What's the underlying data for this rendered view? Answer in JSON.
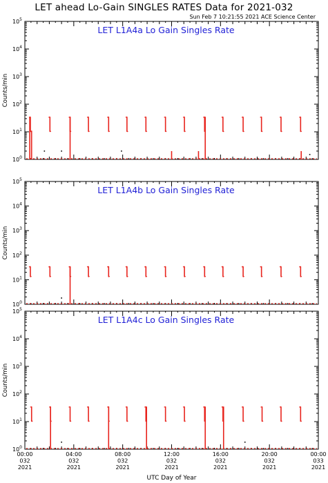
{
  "header": {
    "title": "LET ahead Lo-Gain SINGLES RATES Data for 2021-032",
    "timestamp": "Sun Feb  7 10:21:55 2021 ACE Science Center"
  },
  "colors": {
    "data": "#e8231c",
    "panel_title": "#1f1fd6",
    "axes": "#000000"
  },
  "chart_data": [
    {
      "type": "line",
      "title": "LET L1A4a Lo Gain Singles Rate",
      "ylabel": "Counts/min",
      "xlabel": "UTC Day of Year",
      "yscale": "log",
      "ylim": [
        1,
        100000
      ],
      "xlim": [
        0,
        24
      ],
      "yticks": [
        1,
        10,
        100,
        1000,
        10000,
        100000
      ],
      "ytick_labels": [
        {
          "b": "10",
          "e": "0"
        },
        {
          "b": "10",
          "e": "1"
        },
        {
          "b": "10",
          "e": "2"
        },
        {
          "b": "10",
          "e": "3"
        },
        {
          "b": "10",
          "e": "4"
        },
        {
          "b": "10",
          "e": "5"
        }
      ],
      "burst_hours": [
        0.45,
        2.05,
        3.7,
        5.2,
        6.85,
        8.35,
        9.9,
        11.5,
        13.05,
        14.7,
        16.2,
        17.85,
        19.35,
        20.95,
        22.55
      ],
      "burst_high": 35,
      "burst_low": 10,
      "baseline": 1,
      "spikes": [
        {
          "x": 0.4,
          "y": 35
        },
        {
          "x": 0.55,
          "y": 11
        },
        {
          "x": 3.7,
          "y": 35
        },
        {
          "x": 12.0,
          "y": 2
        },
        {
          "x": 14.2,
          "y": 2
        },
        {
          "x": 14.75,
          "y": 35
        },
        {
          "x": 22.6,
          "y": 2
        }
      ],
      "dots": [
        {
          "x": 1.6,
          "y": 2
        },
        {
          "x": 3.0,
          "y": 2
        },
        {
          "x": 7.9,
          "y": 2
        },
        {
          "x": 23.3,
          "y": 1.5
        }
      ]
    },
    {
      "type": "line",
      "title": "LET L1A4b Lo Gain Singles Rate",
      "ylabel": "Counts/min",
      "xlabel": "UTC Day of Year",
      "yscale": "log",
      "ylim": [
        1,
        100000
      ],
      "xlim": [
        0,
        24
      ],
      "yticks": [
        1,
        10,
        100,
        1000,
        10000,
        100000
      ],
      "ytick_labels": [
        {
          "b": "10",
          "e": "0"
        },
        {
          "b": "10",
          "e": "1"
        },
        {
          "b": "10",
          "e": "2"
        },
        {
          "b": "10",
          "e": "3"
        },
        {
          "b": "10",
          "e": "4"
        },
        {
          "b": "10",
          "e": "5"
        }
      ],
      "burst_hours": [
        0.45,
        2.05,
        3.7,
        5.2,
        6.85,
        8.35,
        9.9,
        11.5,
        13.05,
        14.7,
        16.2,
        17.85,
        19.35,
        20.95,
        22.55
      ],
      "burst_high": 35,
      "burst_low": 13,
      "baseline": 1,
      "spikes": [
        {
          "x": 3.7,
          "y": 35
        }
      ],
      "dots": [
        {
          "x": 3.0,
          "y": 1.8
        }
      ]
    },
    {
      "type": "line",
      "title": "LET L1A4c Lo Gain Singles Rate",
      "ylabel": "Counts/min",
      "xlabel": "UTC Day of Year",
      "yscale": "log",
      "ylim": [
        1,
        100000
      ],
      "xlim": [
        0,
        24
      ],
      "yticks": [
        1,
        10,
        100,
        1000,
        10000,
        100000
      ],
      "ytick_labels": [
        {
          "b": "10",
          "e": "0"
        },
        {
          "b": "10",
          "e": "1"
        },
        {
          "b": "10",
          "e": "2"
        },
        {
          "b": "10",
          "e": "3"
        },
        {
          "b": "10",
          "e": "4"
        },
        {
          "b": "10",
          "e": "5"
        }
      ],
      "burst_hours": [
        0.55,
        2.1,
        3.7,
        5.2,
        6.85,
        8.35,
        9.9,
        11.5,
        13.05,
        14.7,
        16.2,
        17.85,
        19.4,
        20.95,
        22.55
      ],
      "burst_high": 35,
      "burst_low": 10,
      "baseline": 1,
      "spikes": [
        {
          "x": 2.1,
          "y": 35
        },
        {
          "x": 6.85,
          "y": 35
        },
        {
          "x": 9.95,
          "y": 35
        },
        {
          "x": 14.75,
          "y": 35
        },
        {
          "x": 16.25,
          "y": 35
        }
      ],
      "dots": [
        {
          "x": 3.0,
          "y": 1.8
        },
        {
          "x": 18.0,
          "y": 1.8
        }
      ]
    }
  ],
  "x_axis": {
    "title": "UTC Day of Year",
    "ticks": [
      {
        "hour": 0,
        "time": "00:00",
        "doy": "032",
        "year": "2021"
      },
      {
        "hour": 4,
        "time": "04:00",
        "doy": "032",
        "year": "2021"
      },
      {
        "hour": 8,
        "time": "08:00",
        "doy": "032",
        "year": "2021"
      },
      {
        "hour": 12,
        "time": "12:00",
        "doy": "032",
        "year": "2021"
      },
      {
        "hour": 16,
        "time": "16:00",
        "doy": "032",
        "year": "2021"
      },
      {
        "hour": 20,
        "time": "20:00",
        "doy": "032",
        "year": "2021"
      },
      {
        "hour": 24,
        "time": "00:00",
        "doy": "033",
        "year": "2021"
      }
    ]
  }
}
